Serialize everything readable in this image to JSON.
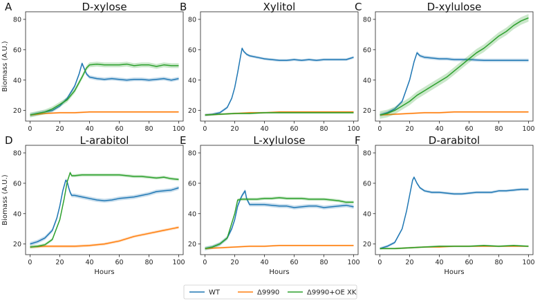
{
  "chart_data": {
    "type": "line",
    "x_label": "Hours",
    "y_label": "Biomass (A.U.)",
    "xlim": [
      -3,
      103
    ],
    "ylim": [
      13,
      85
    ],
    "x_ticks": [
      0,
      20,
      40,
      60,
      80,
      100
    ],
    "y_ticks": [
      20,
      40,
      60,
      80
    ],
    "colors": {
      "WT": "#1f77b4",
      "Δ9990": "#ff7f0e",
      "Δ9990+OE XK": "#2ca02c"
    },
    "legend": [
      "WT",
      "Δ9990",
      "Δ9990+OE XK"
    ],
    "panels": [
      {
        "letter": "A",
        "title": "D-xylose",
        "series": [
          {
            "name": "WT",
            "x": [
              0,
              5,
              10,
              15,
              20,
              25,
              30,
              33,
              35,
              38,
              40,
              45,
              50,
              55,
              60,
              65,
              70,
              75,
              80,
              85,
              90,
              95,
              100
            ],
            "y": [
              17,
              18,
              19,
              20,
              23,
              28,
              36,
              44,
              51,
              44,
              42,
              41,
              40.5,
              41,
              40.5,
              40,
              40.5,
              40.5,
              40,
              40.5,
              41,
              40,
              41
            ],
            "band": 1.2
          },
          {
            "name": "Δ9990",
            "x": [
              0,
              5,
              10,
              20,
              30,
              40,
              50,
              60,
              70,
              80,
              90,
              100
            ],
            "y": [
              17,
              17.5,
              18,
              18.5,
              18.5,
              19,
              19,
              19,
              19,
              19,
              19,
              19
            ],
            "band": 0.6
          },
          {
            "name": "Δ9990+OE XK",
            "x": [
              0,
              5,
              10,
              15,
              20,
              25,
              30,
              35,
              38,
              40,
              45,
              50,
              55,
              60,
              65,
              70,
              75,
              80,
              85,
              90,
              95,
              100
            ],
            "y": [
              17,
              18,
              19,
              21,
              24,
              27,
              33,
              42,
              48,
              50,
              50.5,
              50,
              50,
              50,
              50.5,
              49.5,
              50,
              50,
              49,
              50,
              49.5,
              49.5
            ],
            "band": 1.6
          }
        ]
      },
      {
        "letter": "B",
        "title": "Xylitol",
        "series": [
          {
            "name": "WT",
            "x": [
              0,
              5,
              10,
              15,
              18,
              20,
              22,
              24,
              25,
              26,
              28,
              30,
              35,
              40,
              45,
              50,
              55,
              60,
              65,
              70,
              75,
              80,
              85,
              90,
              95,
              100
            ],
            "y": [
              17,
              17.5,
              18.5,
              22,
              28,
              35,
              45,
              56,
              61,
              59,
              57,
              56,
              55,
              54,
              53.5,
              53,
              53,
              53.5,
              53,
              53.5,
              53,
              53.5,
              53.5,
              53.5,
              53.5,
              55
            ],
            "band": 0.9
          },
          {
            "name": "Δ9990",
            "x": [
              0,
              10,
              20,
              30,
              40,
              50,
              60,
              70,
              80,
              90,
              100
            ],
            "y": [
              17,
              17.5,
              18,
              18.5,
              18.5,
              19,
              19,
              19,
              19,
              19,
              19
            ],
            "band": 0.6
          },
          {
            "name": "Δ9990+OE XK",
            "x": [
              0,
              10,
              20,
              30,
              40,
              50,
              60,
              70,
              80,
              90,
              100
            ],
            "y": [
              17,
              17.5,
              18,
              18,
              18.5,
              18.5,
              18.5,
              18.5,
              18.5,
              18.5,
              18.5
            ],
            "band": 0.6
          }
        ]
      },
      {
        "letter": "C",
        "title": "D-xylulose",
        "series": [
          {
            "name": "WT",
            "x": [
              0,
              5,
              10,
              15,
              20,
              23,
              25,
              27,
              30,
              35,
              40,
              45,
              50,
              60,
              70,
              80,
              90,
              100
            ],
            "y": [
              17,
              18.5,
              21,
              26,
              40,
              52,
              58,
              56,
              55,
              54.5,
              54,
              54,
              53.5,
              53.5,
              53,
              53,
              53,
              53
            ],
            "band": 1.1
          },
          {
            "name": "Δ9990",
            "x": [
              0,
              10,
              20,
              30,
              40,
              50,
              60,
              70,
              80,
              90,
              100
            ],
            "y": [
              17,
              17.5,
              18,
              18.5,
              18.5,
              19,
              19,
              19,
              19,
              19,
              19
            ],
            "band": 0.6
          },
          {
            "name": "Δ9990+OE XK",
            "x": [
              0,
              5,
              10,
              15,
              20,
              25,
              30,
              35,
              40,
              45,
              50,
              55,
              60,
              65,
              70,
              75,
              80,
              85,
              90,
              95,
              100
            ],
            "y": [
              17,
              18,
              20,
              23,
              26,
              30,
              33,
              36,
              39,
              42,
              46,
              50,
              54,
              58,
              61,
              65,
              69,
              72,
              76,
              79,
              81
            ],
            "band": 2.5
          }
        ]
      },
      {
        "letter": "D",
        "title": "L-arabitol",
        "series": [
          {
            "name": "WT",
            "x": [
              0,
              5,
              10,
              15,
              18,
              20,
              22,
              24,
              25,
              26,
              27,
              28,
              30,
              35,
              40,
              45,
              50,
              55,
              60,
              65,
              70,
              75,
              80,
              85,
              90,
              95,
              100
            ],
            "y": [
              20,
              21.5,
              24,
              29,
              37,
              45,
              55,
              62,
              61,
              57,
              54,
              52,
              52,
              51,
              50,
              49,
              48.5,
              49,
              50,
              50.5,
              51,
              52,
              53,
              54.5,
              55,
              55.5,
              57
            ],
            "band": 1.3
          },
          {
            "name": "Δ9990",
            "x": [
              0,
              10,
              20,
              30,
              40,
              50,
              60,
              70,
              80,
              90,
              95,
              100
            ],
            "y": [
              18,
              18.5,
              18.5,
              18.5,
              19,
              20,
              22,
              25,
              27,
              29,
              30,
              31
            ],
            "band": 0.9
          },
          {
            "name": "Δ9990+OE XK",
            "x": [
              0,
              5,
              10,
              15,
              20,
              23,
              25,
              27,
              28,
              30,
              35,
              40,
              45,
              50,
              55,
              60,
              65,
              70,
              75,
              80,
              85,
              90,
              95,
              100
            ],
            "y": [
              18,
              18.5,
              19.5,
              23,
              36,
              50,
              61,
              67,
              65,
              65,
              65.5,
              65.5,
              65.5,
              65.5,
              65.5,
              65.5,
              65,
              64.5,
              64.5,
              64,
              63.5,
              64,
              63,
              62.5
            ],
            "band": 1.0
          }
        ]
      },
      {
        "letter": "E",
        "title": "L-xylulose",
        "series": [
          {
            "name": "WT",
            "x": [
              0,
              5,
              10,
              15,
              18,
              20,
              22,
              24,
              25,
              27,
              28,
              30,
              35,
              40,
              45,
              50,
              55,
              60,
              65,
              70,
              75,
              80,
              85,
              90,
              95,
              100
            ],
            "y": [
              17,
              18,
              20,
              24,
              30,
              36,
              45,
              50,
              52,
              55,
              50,
              46,
              46,
              46,
              45.5,
              45,
              45,
              44,
              44.5,
              45,
              45,
              44,
              44.5,
              45,
              45.5,
              44.5
            ],
            "band": 1.3
          },
          {
            "name": "Δ9990",
            "x": [
              0,
              10,
              20,
              30,
              40,
              50,
              60,
              70,
              80,
              90,
              100
            ],
            "y": [
              17,
              17.5,
              18,
              18.5,
              18.5,
              19,
              19,
              19,
              19,
              19,
              19
            ],
            "band": 0.6
          },
          {
            "name": "Δ9990+OE XK",
            "x": [
              0,
              5,
              10,
              15,
              20,
              22,
              25,
              30,
              35,
              40,
              45,
              50,
              55,
              60,
              65,
              70,
              75,
              80,
              85,
              90,
              95,
              100
            ],
            "y": [
              17,
              18,
              20,
              24,
              40,
              49,
              49.5,
              49.5,
              49.5,
              50,
              50,
              50.5,
              50,
              50,
              50,
              49.5,
              49.5,
              49.5,
              49,
              48.5,
              47.5,
              47.5
            ],
            "band": 1.0
          }
        ]
      },
      {
        "letter": "F",
        "title": "D-arabitol",
        "series": [
          {
            "name": "WT",
            "x": [
              0,
              5,
              10,
              15,
              18,
              20,
              22,
              23,
              25,
              27,
              30,
              35,
              40,
              45,
              50,
              55,
              60,
              65,
              70,
              75,
              80,
              85,
              90,
              95,
              100
            ],
            "y": [
              17,
              18.5,
              21,
              30,
              42,
              52,
              62,
              64,
              60,
              57,
              55,
              54,
              54,
              53.5,
              53,
              53,
              53.5,
              54,
              54,
              54,
              55,
              55,
              55.5,
              56,
              56
            ],
            "band": 0.9
          },
          {
            "name": "Δ9990",
            "x": [
              0,
              10,
              20,
              30,
              40,
              50,
              60,
              70,
              80,
              90,
              100
            ],
            "y": [
              17,
              17,
              17.5,
              18,
              18,
              18.5,
              18.5,
              18.5,
              18.5,
              18.5,
              18.5
            ],
            "band": 0.5
          },
          {
            "name": "Δ9990+OE XK",
            "x": [
              0,
              10,
              20,
              30,
              40,
              50,
              60,
              70,
              80,
              90,
              100
            ],
            "y": [
              17,
              17,
              17.5,
              18,
              18.5,
              18.5,
              18.5,
              19,
              18.5,
              19,
              18.5
            ],
            "band": 0.6
          }
        ]
      }
    ]
  }
}
